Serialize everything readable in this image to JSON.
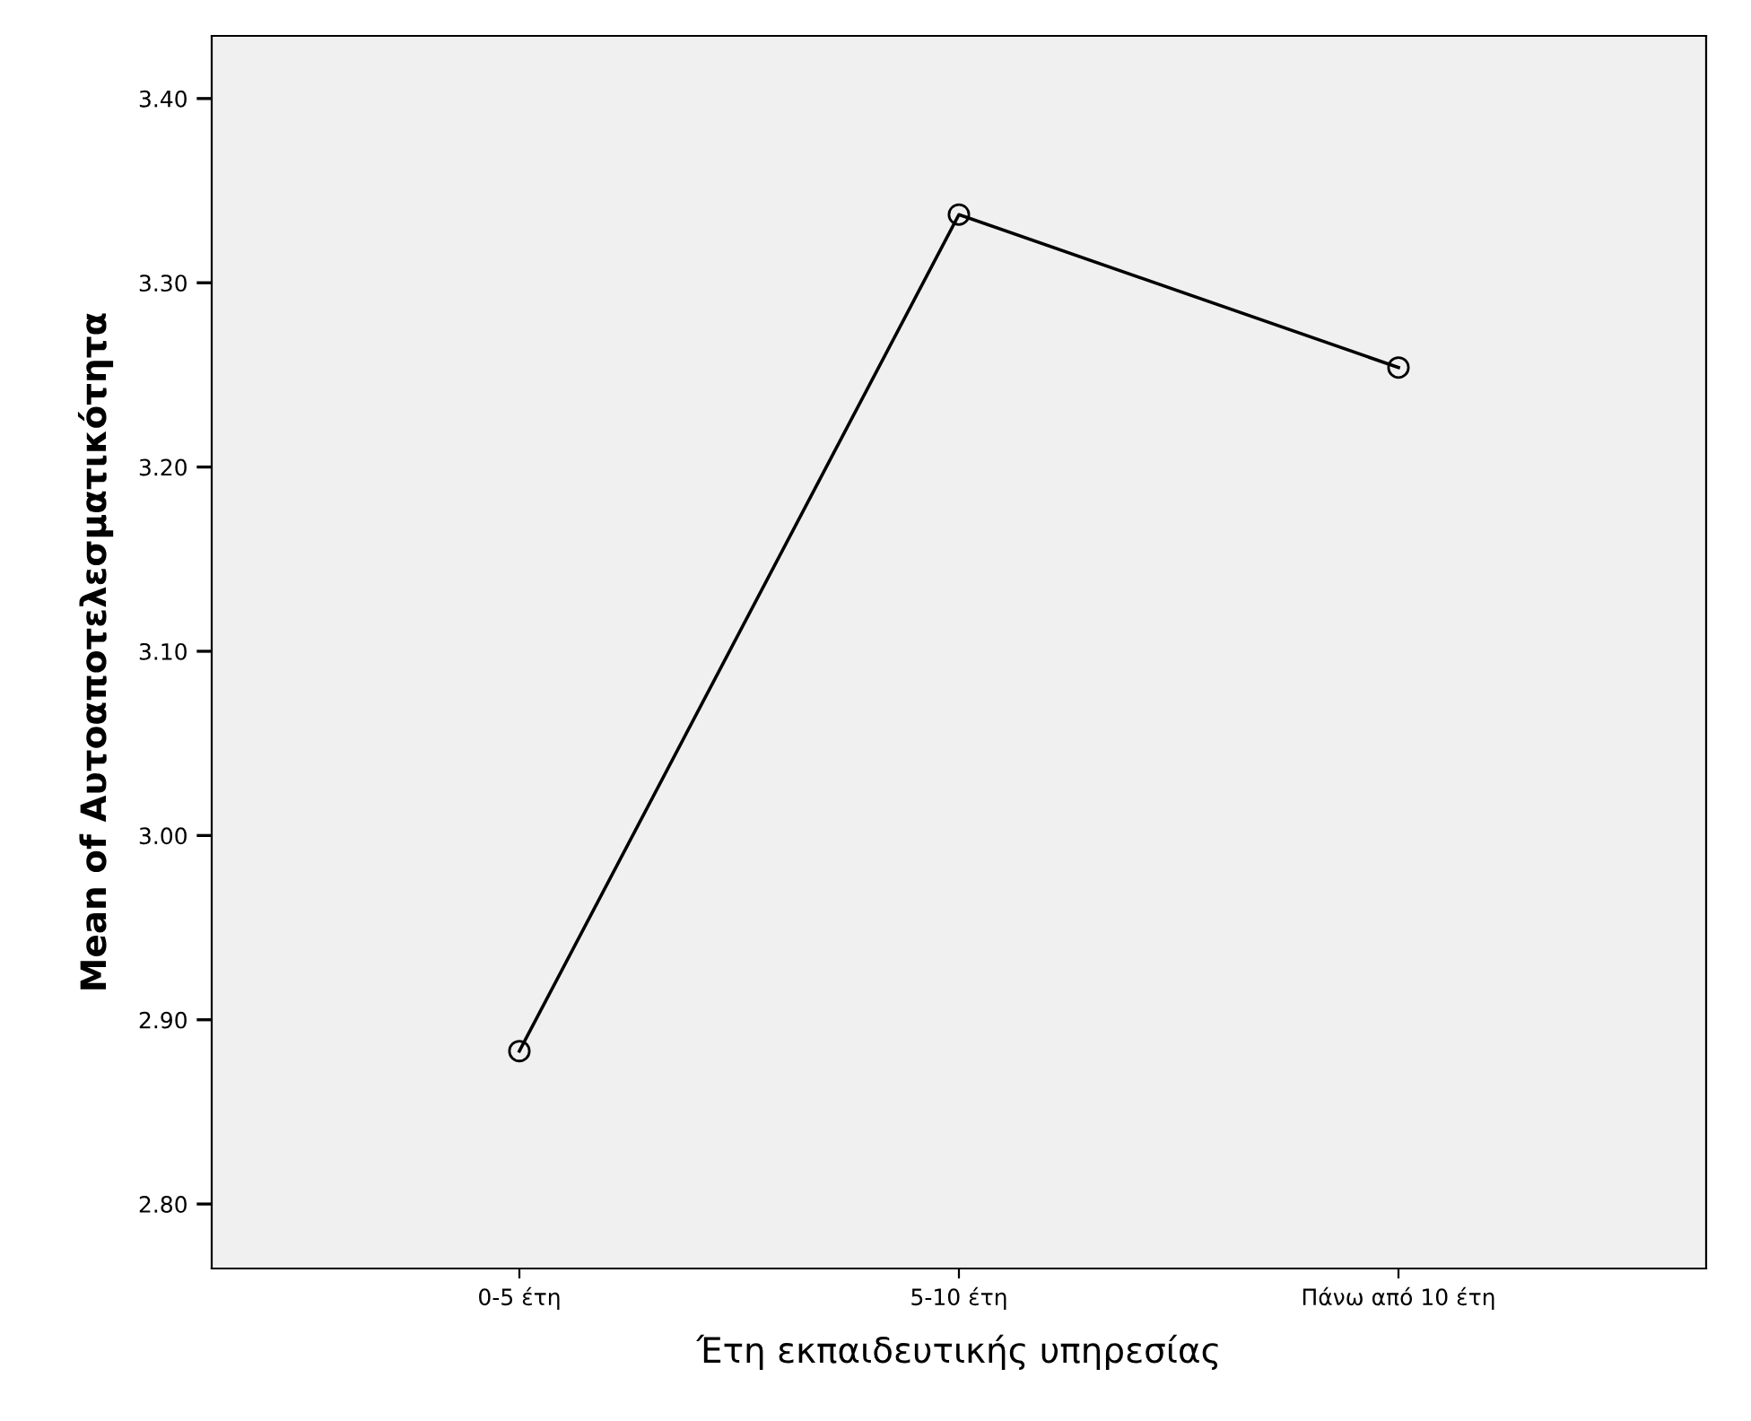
{
  "chart_data": {
    "type": "line",
    "xlabel": "Έτη εκπαιδευτικής υπηρεσίας",
    "ylabel": "Mean of Αυτοαποτελεσματικότητα",
    "categories": [
      "0-5 έτη",
      "5-10 έτη",
      "Πάνω από 10 έτη"
    ],
    "series": [
      {
        "color": "#000000",
        "values": [
          2.883,
          3.337,
          3.254
        ]
      }
    ],
    "marker": "circle",
    "line_style": "solid",
    "grid": false,
    "legend": false,
    "ylim": [
      2.765,
      3.434
    ],
    "yticks": [
      {
        "value": 2.8,
        "label": "2.80"
      },
      {
        "value": 2.9,
        "label": "2.90"
      },
      {
        "value": 3.0,
        "label": "3.00"
      },
      {
        "value": 3.1,
        "label": "3.10"
      },
      {
        "value": 3.2,
        "label": "3.20"
      },
      {
        "value": 3.3,
        "label": "3.30"
      },
      {
        "value": 3.4,
        "label": "3.40"
      }
    ]
  }
}
